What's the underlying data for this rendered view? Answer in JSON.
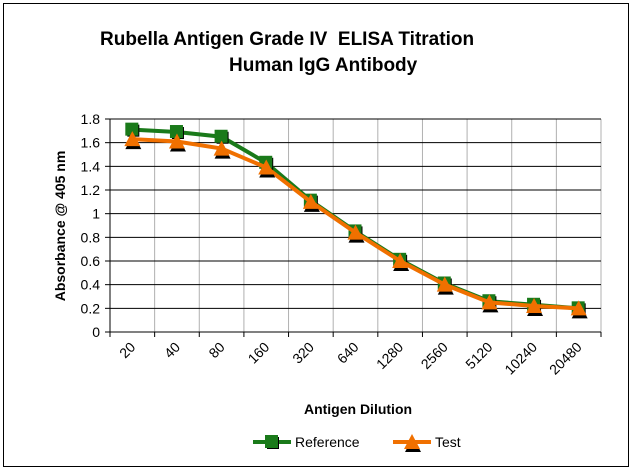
{
  "chart_data": {
    "type": "line",
    "title": "Rubella Antigen Grade IV  ELISA Titration",
    "subtitle": "Human IgG Antibody",
    "xlabel": "Antigen Dilution",
    "ylabel": "Absorbance @ 405 nm",
    "categories": [
      "20",
      "40",
      "80",
      "160",
      "320",
      "640",
      "1280",
      "2560",
      "5120",
      "10240",
      "20480"
    ],
    "ylim": [
      0,
      1.8
    ],
    "yticks": [
      "0",
      "0.2",
      "0.4",
      "0.6",
      "0.8",
      "1",
      "1.2",
      "1.4",
      "1.6",
      "1.8"
    ],
    "grid": true,
    "legend_position": "bottom",
    "series": [
      {
        "name": "Reference",
        "color": "#1a7a1a",
        "marker": "square",
        "values": [
          1.71,
          1.69,
          1.65,
          1.43,
          1.11,
          0.85,
          0.61,
          0.41,
          0.26,
          0.23,
          0.2
        ]
      },
      {
        "name": "Test",
        "color": "#f07000",
        "marker": "triangle",
        "values": [
          1.63,
          1.61,
          1.55,
          1.39,
          1.1,
          0.84,
          0.6,
          0.4,
          0.25,
          0.22,
          0.2
        ]
      }
    ]
  }
}
